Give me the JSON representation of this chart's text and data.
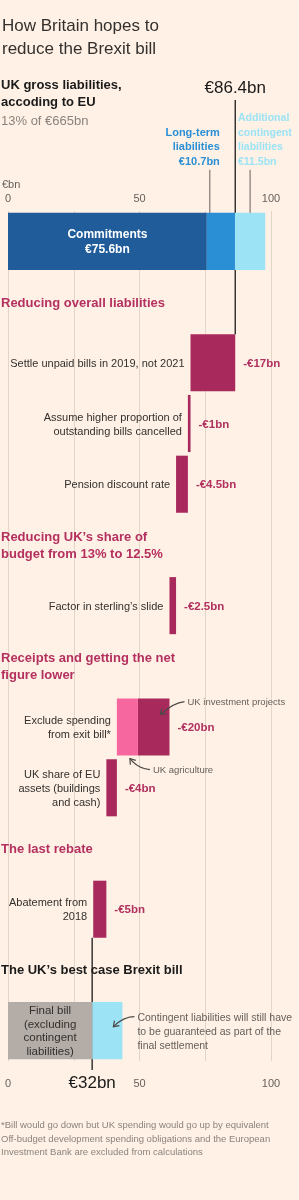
{
  "chart_data": {
    "type": "bar",
    "orientation": "horizontal",
    "title": "How Britain hopes to reduce the Brexit bill",
    "subtitle": "UK gross liabilities, accoding to EU",
    "x2label": "€bn",
    "categories": [
      null,
      null,
      "Settle unpaid bills in 2019, not 2021",
      "Assume higher proportion of outstanding bills cancelled",
      "Pension discount rate",
      null,
      "Factor in sterling’s slide",
      null,
      "Exclude spending from exit bill*",
      "UK share of EU assets (buildings and cash)",
      null,
      "Abatement from 2018",
      null,
      null
    ],
    "xlim": [
      0,
      100
    ],
    "xticks": [
      0,
      {
        "value": 25,
        "label": null
      },
      50,
      {
        "value": 75,
        "label": null
      },
      100
    ],
    "x2lim": [
      0,
      100
    ],
    "x2ticks": [
      0,
      {
        "value": 25,
        "label": null
      },
      50,
      {
        "value": 75,
        "label": null
      },
      100
    ],
    "grid": "x",
    "series": [
      {
        "name": "Commitments",
        "color": "#1f5c99",
        "values": [
          75.6,
          null,
          null,
          null,
          null,
          null,
          null,
          null,
          null,
          null,
          null,
          null,
          null,
          null
        ],
        "base": [
          0,
          null,
          null,
          null,
          null,
          null,
          null,
          null,
          null,
          null,
          null,
          null,
          null,
          null
        ],
        "value_labels": [
          "€75.6bn",
          null,
          null,
          null,
          null,
          null,
          null,
          null,
          null,
          null,
          null,
          null,
          null,
          null
        ]
      },
      {
        "name": "Long-term liabilities",
        "color": "#2b8fd6",
        "values": [
          10.7,
          null,
          null,
          null,
          null,
          null,
          null,
          null,
          null,
          null,
          null,
          null,
          null,
          null
        ],
        "base": [
          75.6,
          null,
          null,
          null,
          null,
          null,
          null,
          null,
          null,
          null,
          null,
          null,
          null,
          null
        ],
        "value_labels": [
          "€10.7bn",
          null,
          null,
          null,
          null,
          null,
          null,
          null,
          null,
          null,
          null,
          null,
          null,
          null
        ]
      },
      {
        "name": "Additional contingent liabilities",
        "color": "#9be3f5",
        "values": [
          11.5,
          null,
          null,
          null,
          null,
          null,
          null,
          null,
          null,
          null,
          null,
          null,
          null,
          11.5
        ],
        "base": [
          86.3,
          null,
          null,
          null,
          null,
          null,
          null,
          null,
          null,
          null,
          null,
          null,
          null,
          32
        ],
        "value_labels": [
          "€11.5bn",
          null,
          null,
          null,
          null,
          null,
          null,
          null,
          null,
          null,
          null,
          null,
          null,
          null
        ]
      },
      {
        "color": "#a8295c",
        "values": [
          null,
          null,
          -17,
          -1,
          -4.5,
          null,
          -2.5,
          null,
          null,
          -4,
          null,
          -5,
          null,
          null
        ],
        "base": [
          null,
          null,
          86.4,
          69.4,
          68.4,
          null,
          63.9,
          null,
          null,
          41.4,
          null,
          37.4,
          null,
          null
        ],
        "value_labels": [
          null,
          null,
          "-€17bn",
          "-€1bn",
          "-€4.5bn",
          null,
          "-€2.5bn",
          null,
          null,
          "-€4bn",
          null,
          "-€5bn",
          null,
          null
        ]
      },
      {
        "name": "UK investment projects",
        "color": "#a8295c",
        "values": [
          null,
          null,
          null,
          null,
          null,
          null,
          null,
          null,
          -12,
          null,
          null,
          null,
          null,
          null
        ],
        "base": [
          null,
          null,
          null,
          null,
          null,
          null,
          null,
          null,
          61.4,
          null,
          null,
          null,
          null,
          null
        ]
      },
      {
        "name": "UK agriculture",
        "color": "#f7679f",
        "values": [
          null,
          null,
          null,
          null,
          null,
          null,
          null,
          null,
          -8,
          null,
          null,
          null,
          null,
          null
        ],
        "base": [
          null,
          null,
          null,
          null,
          null,
          null,
          null,
          null,
          49.4,
          null,
          null,
          null,
          null,
          null
        ]
      },
      {
        "name": "Final bill (excluding contingent liabilities)",
        "color": "#b3aca7",
        "values": [
          null,
          null,
          null,
          null,
          null,
          null,
          null,
          null,
          null,
          null,
          null,
          null,
          null,
          32
        ],
        "base": [
          null,
          null,
          null,
          null,
          null,
          null,
          null,
          null,
          null,
          null,
          null,
          null,
          null,
          0
        ]
      }
    ],
    "ref_lines": [
      {
        "axis": "x",
        "value": 86.4,
        "label": "€86.4bn",
        "color": "#1a1a1a"
      },
      {
        "axis": "x",
        "value": 32,
        "label": "€32bn",
        "color": "#1a1a1a"
      }
    ],
    "annotations": [
      "13% of €665bn",
      "Reducing overall liabilities",
      "Reducing UK’s share of budget from 13% to 12.5%",
      "Receipts and getting the net figure lower",
      "The last rebate",
      "The UK’s best case Brexit bill",
      "Contingent liabilities will still have to be guaranteed as part of the final settlement",
      "*Bill would go down but UK spending would go up by equivalent",
      "Off-budget development spending obligations and the European Investment Bank are excluded from calculations",
      {
        "text": "-€20bn",
        "x": 61.4,
        "y": "Exclude spending from exit bill*"
      }
    ]
  }
}
